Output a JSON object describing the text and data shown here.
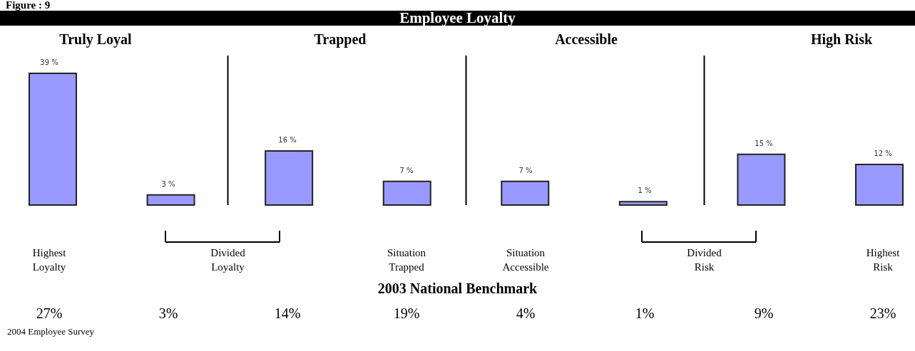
{
  "chart_data": {
    "type": "bar",
    "title": "Employee Loyalty",
    "categories": [
      "Highest Loyalty",
      null,
      null,
      "Situation Trapped",
      "Situation Accessible",
      null,
      null,
      "Highest Risk"
    ],
    "values": [
      39,
      3,
      16,
      7,
      7,
      1,
      15,
      12
    ],
    "value_labels": [
      "39 %",
      "3 %",
      "16 %",
      "7 %",
      "7 %",
      "1 %",
      "15 %",
      "12 %"
    ],
    "color": "#9999ff",
    "annotations": [
      "Figure : 9",
      "Truly Loyal",
      "Trapped",
      "Accessible",
      "High Risk",
      "Divided Loyalty",
      "Divided Risk",
      "2003 National Benchmark",
      "27%",
      "3%",
      "14%",
      "19%",
      "4%",
      "1%",
      "9%",
      "23%",
      "2004 Employee Survey"
    ]
  }
}
